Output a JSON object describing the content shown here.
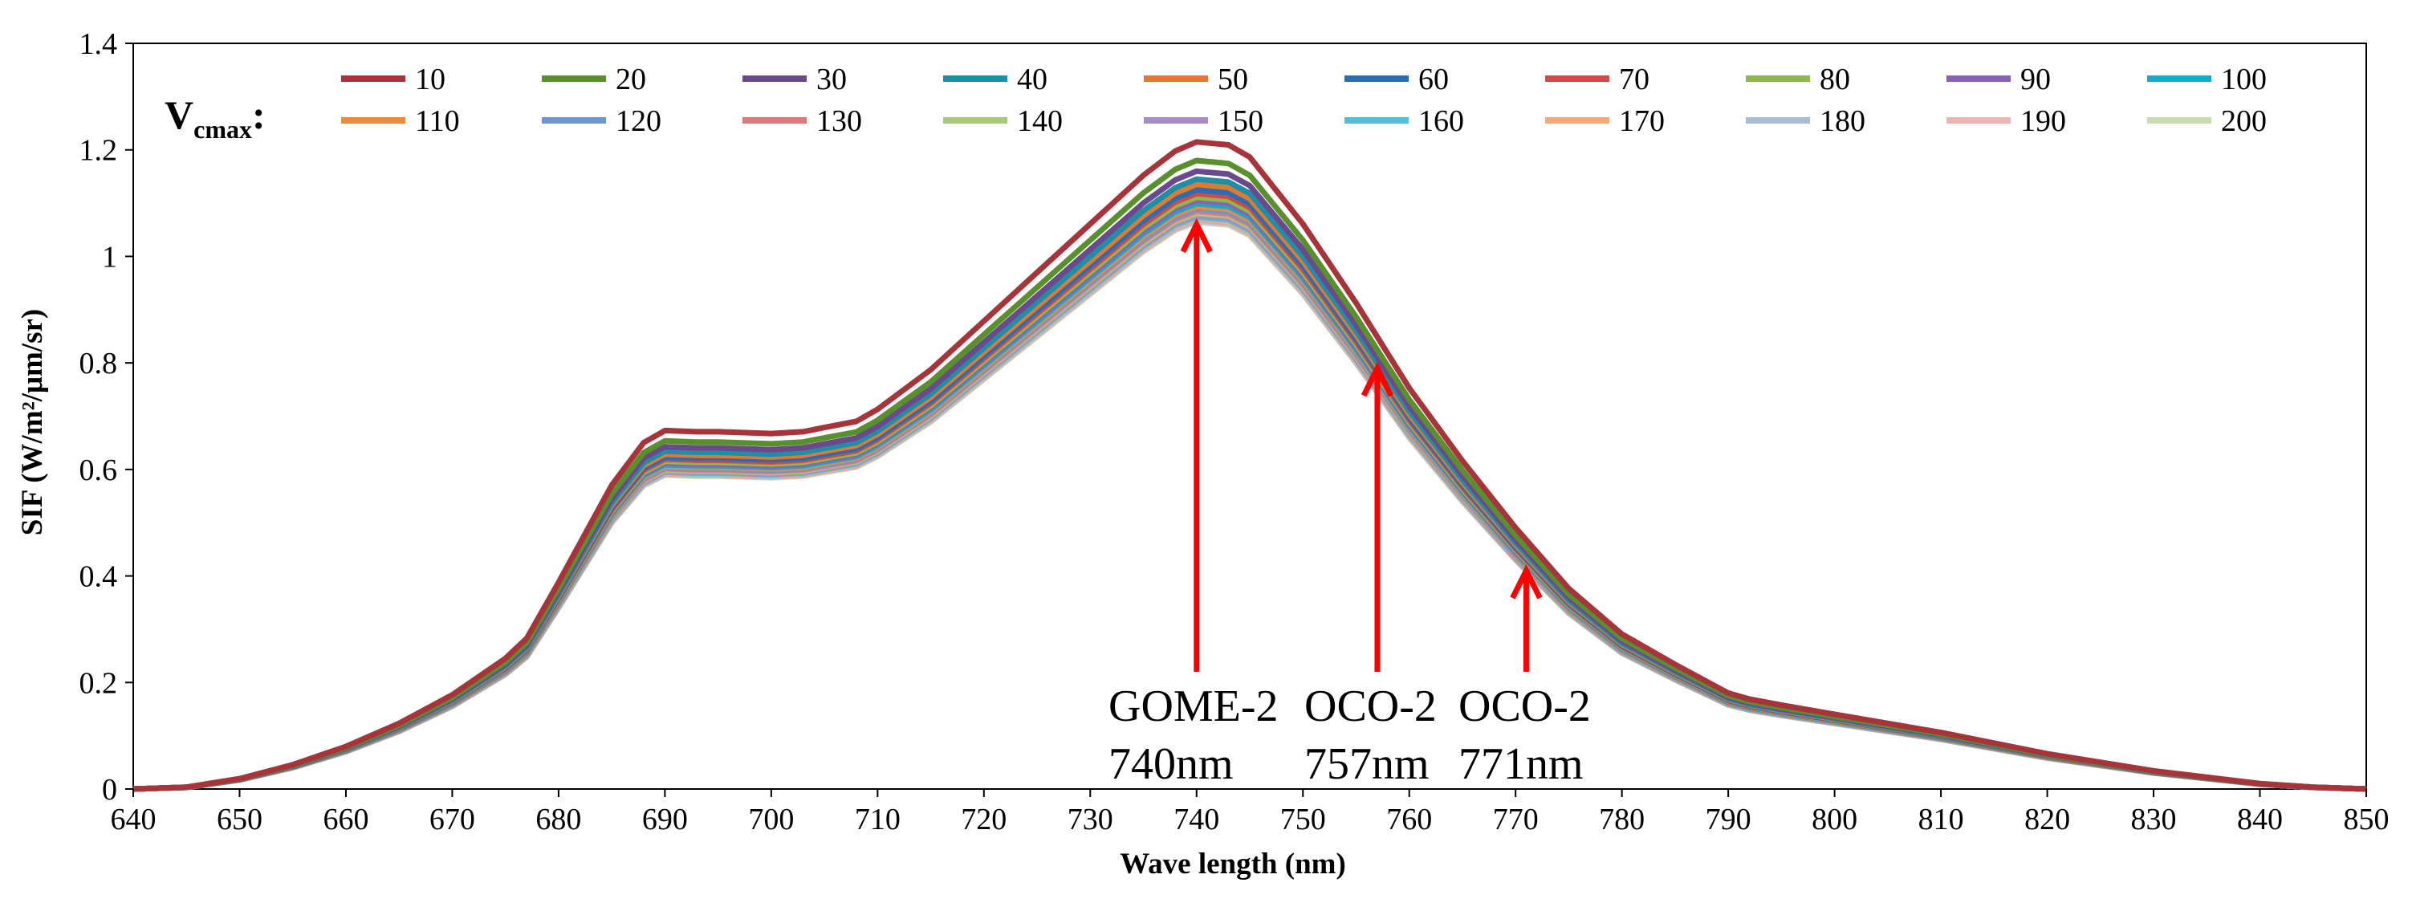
{
  "chart_data": {
    "type": "line",
    "title": "",
    "xlabel": "Wave length (nm)",
    "ylabel": "SIF (W/m²/μm/sr)",
    "xlim": [
      640,
      850
    ],
    "ylim": [
      0,
      1.4
    ],
    "xticks": [
      640,
      650,
      660,
      670,
      680,
      690,
      700,
      710,
      720,
      730,
      740,
      750,
      760,
      770,
      780,
      790,
      800,
      810,
      820,
      830,
      840,
      850
    ],
    "yticks": [
      {
        "value": 0,
        "label": "0"
      },
      {
        "value": 0.2,
        "label": "0.2"
      },
      {
        "value": 0.4,
        "label": "0.4"
      },
      {
        "value": 0.6,
        "label": "0.6"
      },
      {
        "value": 0.8,
        "label": "0.8"
      },
      {
        "value": 1.0,
        "label": "1"
      },
      {
        "value": 1.2,
        "label": "1.2"
      },
      {
        "value": 1.4,
        "label": "1.4"
      }
    ],
    "grid": false,
    "legend_title": "V",
    "legend_title_sub": "cmax",
    "legend_title_suffix": ":",
    "x": [
      640,
      645,
      650,
      655,
      660,
      665,
      670,
      675,
      677,
      680,
      685,
      688,
      690,
      693,
      695,
      700,
      703,
      705,
      708,
      710,
      715,
      720,
      725,
      730,
      735,
      738,
      740,
      743,
      745,
      750,
      755,
      760,
      765,
      770,
      775,
      780,
      785,
      790,
      792,
      795,
      800,
      810,
      820,
      830,
      840,
      845,
      850
    ],
    "base_shape": [
      0,
      0.003,
      0.017,
      0.04,
      0.07,
      0.108,
      0.155,
      0.215,
      0.248,
      0.34,
      0.5,
      0.57,
      0.59,
      0.588,
      0.588,
      0.585,
      0.588,
      0.595,
      0.605,
      0.625,
      0.69,
      0.77,
      0.85,
      0.93,
      1.01,
      1.05,
      1.065,
      1.06,
      1.04,
      0.93,
      0.8,
      0.66,
      0.54,
      0.43,
      0.33,
      0.255,
      0.205,
      0.158,
      0.148,
      0.138,
      0.123,
      0.093,
      0.058,
      0.03,
      0.009,
      0.003,
      0
    ],
    "series": [
      {
        "name": "10",
        "color": "#a6343a",
        "peak": 1.215
      },
      {
        "name": "20",
        "color": "#5a8f2e",
        "peak": 1.18
      },
      {
        "name": "30",
        "color": "#6a4a8c",
        "peak": 1.16
      },
      {
        "name": "40",
        "color": "#1f8fa8",
        "peak": 1.145
      },
      {
        "name": "50",
        "color": "#e07a2e",
        "peak": 1.135
      },
      {
        "name": "60",
        "color": "#2a6db5",
        "peak": 1.125
      },
      {
        "name": "70",
        "color": "#d04a48",
        "peak": 1.118
      },
      {
        "name": "80",
        "color": "#8db84a",
        "peak": 1.111
      },
      {
        "name": "90",
        "color": "#8a62b5",
        "peak": 1.105
      },
      {
        "name": "100",
        "color": "#1aa8c8",
        "peak": 1.099
      },
      {
        "name": "110",
        "color": "#f08a3a",
        "peak": 1.094
      },
      {
        "name": "120",
        "color": "#6f95cf",
        "peak": 1.089
      },
      {
        "name": "130",
        "color": "#e07a7a",
        "peak": 1.085
      },
      {
        "name": "140",
        "color": "#a8c87a",
        "peak": 1.081
      },
      {
        "name": "150",
        "color": "#a88bc9",
        "peak": 1.077
      },
      {
        "name": "160",
        "color": "#4fc0d8",
        "peak": 1.074
      },
      {
        "name": "170",
        "color": "#f5a878",
        "peak": 1.071
      },
      {
        "name": "180",
        "color": "#a8bcd8",
        "peak": 1.068
      },
      {
        "name": "190",
        "color": "#ecb5b5",
        "peak": 1.066
      },
      {
        "name": "200",
        "color": "#c8dcb0",
        "peak": 1.064
      }
    ],
    "annotations": [
      {
        "x": 740,
        "y_tail": 0.22,
        "y_head": 1.06,
        "label_line1": "GOME-2",
        "label_line2": "740nm",
        "color": "#ff0000"
      },
      {
        "x": 757,
        "y_tail": 0.22,
        "y_head": 0.79,
        "label_line1": "OCO-2",
        "label_line2": "757nm",
        "color": "#ff0000"
      },
      {
        "x": 771,
        "y_tail": 0.22,
        "y_head": 0.41,
        "label_line1": "OCO-2",
        "label_line2": "771nm",
        "color": "#ff0000"
      }
    ]
  }
}
